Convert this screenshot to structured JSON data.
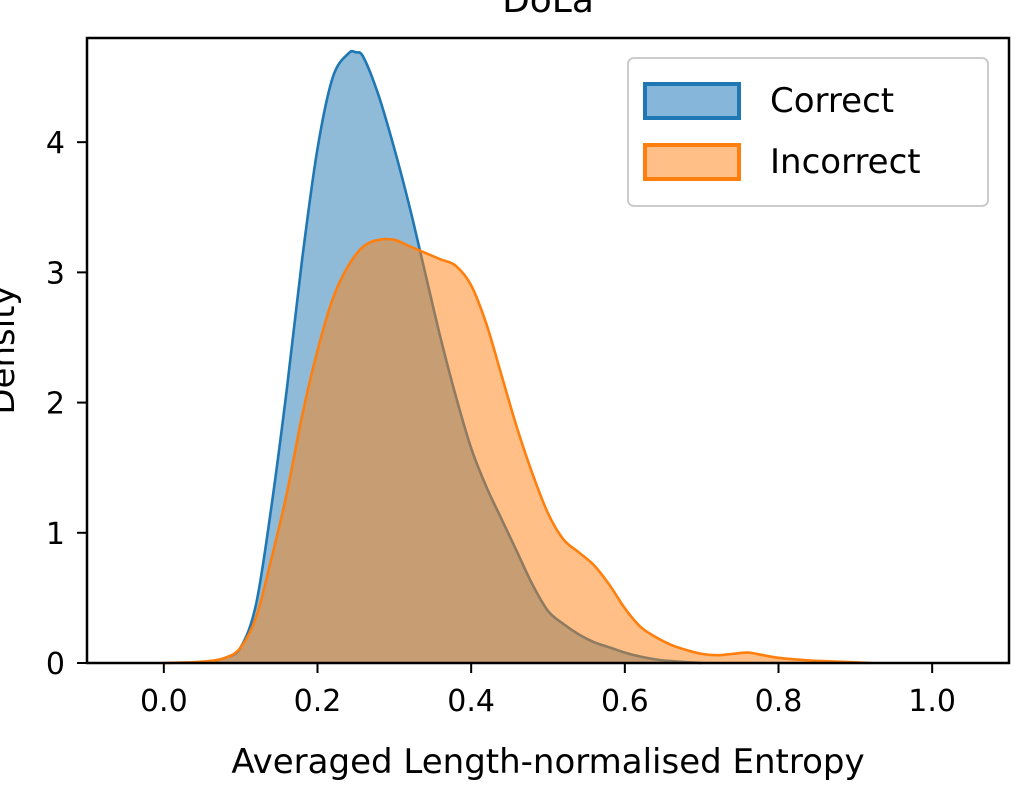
{
  "chart_data": {
    "type": "area",
    "title": "DoLa",
    "xlabel": "Averaged Length-normalised Entropy",
    "ylabel": "Density",
    "xlim": [
      -0.1,
      1.1
    ],
    "ylim": [
      0,
      4.8
    ],
    "xticks": [
      0.0,
      0.2,
      0.4,
      0.6,
      0.8,
      1.0
    ],
    "xtick_labels": [
      "0.0",
      "0.2",
      "0.4",
      "0.6",
      "0.8",
      "1.0"
    ],
    "yticks": [
      0,
      1,
      2,
      3,
      4
    ],
    "ytick_labels": [
      "0",
      "1",
      "2",
      "3",
      "4"
    ],
    "grid": false,
    "legend_position": "top-right",
    "series": [
      {
        "name": "Correct",
        "color": "#1f77b4",
        "fill": "#86b6d9",
        "x": [
          0.05,
          0.08,
          0.1,
          0.12,
          0.14,
          0.16,
          0.18,
          0.2,
          0.22,
          0.24,
          0.25,
          0.26,
          0.28,
          0.3,
          0.32,
          0.34,
          0.36,
          0.38,
          0.4,
          0.42,
          0.44,
          0.46,
          0.48,
          0.5,
          0.52,
          0.54,
          0.56,
          0.58,
          0.6,
          0.62,
          0.65,
          0.7
        ],
        "y": [
          0.0,
          0.04,
          0.12,
          0.45,
          1.2,
          2.1,
          3.1,
          3.95,
          4.5,
          4.68,
          4.69,
          4.65,
          4.35,
          3.95,
          3.5,
          3.0,
          2.5,
          2.05,
          1.65,
          1.35,
          1.1,
          0.85,
          0.6,
          0.4,
          0.3,
          0.22,
          0.16,
          0.12,
          0.08,
          0.05,
          0.02,
          0.0
        ]
      },
      {
        "name": "Incorrect",
        "color": "#ff7f0e",
        "fill": "#ffbf86",
        "x": [
          0.0,
          0.05,
          0.08,
          0.1,
          0.12,
          0.14,
          0.16,
          0.18,
          0.2,
          0.22,
          0.24,
          0.26,
          0.28,
          0.3,
          0.32,
          0.34,
          0.36,
          0.38,
          0.4,
          0.42,
          0.44,
          0.46,
          0.48,
          0.5,
          0.52,
          0.54,
          0.56,
          0.58,
          0.6,
          0.62,
          0.64,
          0.66,
          0.68,
          0.7,
          0.72,
          0.74,
          0.76,
          0.78,
          0.8,
          0.84,
          0.88,
          0.92
        ],
        "y": [
          0.0,
          0.01,
          0.04,
          0.12,
          0.35,
          0.8,
          1.3,
          1.9,
          2.4,
          2.8,
          3.05,
          3.2,
          3.25,
          3.25,
          3.2,
          3.15,
          3.1,
          3.05,
          2.9,
          2.6,
          2.2,
          1.8,
          1.45,
          1.15,
          0.95,
          0.85,
          0.75,
          0.6,
          0.42,
          0.28,
          0.2,
          0.14,
          0.1,
          0.07,
          0.06,
          0.07,
          0.08,
          0.06,
          0.04,
          0.02,
          0.01,
          0.0
        ]
      }
    ]
  }
}
